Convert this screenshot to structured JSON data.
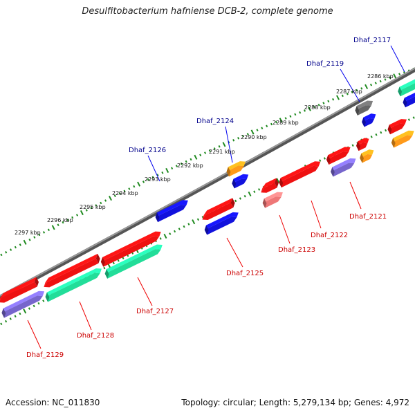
{
  "title": "Desulfitobacterium hafniense DCB-2, complete genome",
  "footer": {
    "accession": "Accession: NC_011830",
    "summary": "Topology: circular; Length: 5,279,134 bp; Genes: 4,972"
  },
  "colors": {
    "backbone": "#7f7f7f",
    "tick": "#1f8a1f",
    "label_top": "#00008b",
    "label_bottom": "#cc0000",
    "red": "#ee1111",
    "blue": "#1212dd",
    "teal": "#22dd99",
    "violet": "#7766cc",
    "orange": "#ff9a1a",
    "gray": "#666666",
    "pink": "#ee7777"
  },
  "ruler": {
    "labels": [
      "2286 kbp",
      "2287 kbp",
      "2288 kbp",
      "2289 kbp",
      "2290 kbp",
      "2291 kbp",
      "2292 kbp",
      "2293 kbp",
      "2294 kbp",
      "2295 kbp",
      "2296 kbp",
      "2297 kbp"
    ]
  },
  "labels": {
    "top": [
      "Dhaf_2117",
      "Dhaf_2119",
      "Dhaf_2124",
      "Dhaf_2126"
    ],
    "bottom": [
      "Dhaf_2121",
      "Dhaf_2122",
      "Dhaf_2123",
      "Dhaf_2125",
      "Dhaf_2127",
      "Dhaf_2128",
      "Dhaf_2129"
    ]
  }
}
